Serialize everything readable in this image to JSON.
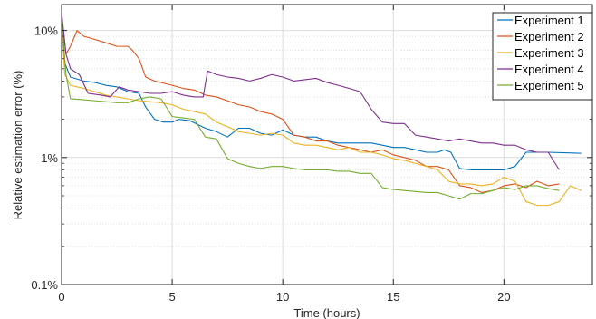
{
  "chart_data": {
    "type": "line",
    "xlabel": "Time (hours)",
    "ylabel": "Relative estimation error (%)",
    "xlim": [
      0,
      24
    ],
    "ylim": [
      0.1,
      16
    ],
    "yscale": "log",
    "grid": true,
    "legend_position": "top-right",
    "x_ticks": [
      0,
      5,
      10,
      15,
      20
    ],
    "x_tick_labels": [
      "0",
      "5",
      "10",
      "15",
      "20"
    ],
    "y_ticks": [
      0.1,
      1,
      10
    ],
    "y_tick_labels": [
      "0.1%",
      "1%",
      "10%"
    ],
    "series": [
      {
        "name": "Experiment 1",
        "color": "#0072BD",
        "x": [
          0,
          0.15,
          0.4,
          1.0,
          1.5,
          2.0,
          2.5,
          3.0,
          3.5,
          3.8,
          4.2,
          4.6,
          5.0,
          5.3,
          5.8,
          6.5,
          7.0,
          7.5,
          8.0,
          8.5,
          9.0,
          9.5,
          10.0,
          10.5,
          11.0,
          11.5,
          12.0,
          12.5,
          13.0,
          13.5,
          14.0,
          14.5,
          15.0,
          15.5,
          16.0,
          16.5,
          17.0,
          17.3,
          17.6,
          18.0,
          18.5,
          19.0,
          19.5,
          20.0,
          20.5,
          21.0,
          21.5,
          22.0,
          23.5
        ],
        "y": [
          14,
          5.5,
          4.3,
          4.0,
          3.9,
          3.7,
          3.6,
          3.3,
          3.2,
          2.5,
          2.0,
          1.9,
          1.9,
          2.0,
          1.95,
          1.7,
          1.6,
          1.45,
          1.7,
          1.7,
          1.55,
          1.5,
          1.65,
          1.5,
          1.45,
          1.45,
          1.35,
          1.3,
          1.3,
          1.3,
          1.3,
          1.25,
          1.2,
          1.2,
          1.15,
          1.1,
          1.1,
          1.15,
          1.1,
          0.82,
          0.8,
          0.8,
          0.8,
          0.8,
          0.85,
          1.1,
          1.1,
          1.1,
          1.08
        ]
      },
      {
        "name": "Experiment 2",
        "color": "#D95319",
        "x": [
          0,
          0.2,
          0.4,
          0.7,
          1.0,
          1.5,
          2.0,
          2.5,
          3.0,
          3.2,
          3.5,
          3.8,
          4.2,
          5.0,
          5.5,
          6.0,
          6.5,
          7.0,
          7.5,
          8.0,
          8.5,
          9.0,
          9.5,
          10.0,
          10.5,
          11.0,
          11.5,
          12.0,
          12.5,
          13.0,
          13.5,
          14.0,
          14.5,
          15.0,
          15.5,
          16.0,
          16.5,
          17.0,
          17.5,
          18.0,
          18.5,
          19.0,
          19.5,
          20.0,
          20.5,
          21.0,
          21.5,
          22.0,
          22.5
        ],
        "y": [
          13,
          6.5,
          7.5,
          10.0,
          9.0,
          8.5,
          8.0,
          7.5,
          7.5,
          7.0,
          6.0,
          4.3,
          4.0,
          3.7,
          3.5,
          3.4,
          3.1,
          3.0,
          2.8,
          2.6,
          2.5,
          2.3,
          2.2,
          2.0,
          1.5,
          1.45,
          1.35,
          1.35,
          1.25,
          1.2,
          1.15,
          1.1,
          1.15,
          1.05,
          1.0,
          0.95,
          0.85,
          0.85,
          0.8,
          0.6,
          0.58,
          0.53,
          0.55,
          0.6,
          0.62,
          0.58,
          0.65,
          0.6,
          0.62
        ]
      },
      {
        "name": "Experiment 3",
        "color": "#EDB120",
        "x": [
          0,
          0.15,
          0.4,
          1.0,
          1.5,
          2.0,
          2.5,
          3.0,
          3.5,
          4.0,
          4.5,
          5.0,
          5.5,
          6.0,
          6.5,
          7.0,
          7.5,
          8.0,
          8.5,
          9.0,
          9.5,
          10.0,
          10.5,
          11.0,
          11.5,
          12.0,
          12.5,
          13.0,
          13.5,
          14.0,
          14.5,
          15.0,
          15.5,
          16.0,
          16.5,
          17.0,
          17.5,
          18.0,
          18.5,
          19.0,
          19.5,
          20.0,
          20.5,
          21.0,
          21.5,
          22.0,
          22.5,
          23.0,
          23.5
        ],
        "y": [
          11,
          4.5,
          3.7,
          3.5,
          3.3,
          3.1,
          3.0,
          2.9,
          2.8,
          2.75,
          2.7,
          2.6,
          2.4,
          2.3,
          2.2,
          1.9,
          1.75,
          1.6,
          1.55,
          1.5,
          1.55,
          1.5,
          1.3,
          1.25,
          1.25,
          1.2,
          1.15,
          1.2,
          1.1,
          1.1,
          1.05,
          0.98,
          0.95,
          0.9,
          0.85,
          0.8,
          0.65,
          0.62,
          0.62,
          0.6,
          0.62,
          0.7,
          0.65,
          0.45,
          0.42,
          0.42,
          0.45,
          0.6,
          0.55
        ]
      },
      {
        "name": "Experiment 4",
        "color": "#7E2F8E",
        "x": [
          0,
          0.2,
          0.4,
          0.8,
          1.2,
          1.8,
          2.2,
          2.6,
          3.0,
          3.5,
          4.0,
          4.5,
          5.0,
          5.5,
          6.0,
          6.4,
          6.6,
          7.0,
          7.5,
          8.0,
          8.5,
          9.0,
          9.5,
          10.0,
          10.5,
          11.0,
          11.5,
          12.0,
          12.5,
          13.0,
          13.5,
          14.0,
          14.5,
          15.0,
          15.5,
          16.0,
          16.5,
          17.0,
          17.5,
          18.0,
          18.5,
          19.0,
          19.5,
          20.0,
          20.5,
          21.0,
          21.5,
          22.0,
          22.5
        ],
        "y": [
          14,
          6.5,
          5.0,
          4.5,
          3.2,
          3.1,
          3.0,
          3.6,
          3.4,
          3.3,
          3.2,
          3.2,
          3.3,
          3.1,
          3.0,
          3.0,
          4.8,
          4.5,
          4.3,
          4.2,
          4.0,
          4.2,
          4.5,
          4.3,
          4.0,
          4.1,
          4.2,
          3.9,
          3.7,
          3.5,
          3.3,
          2.4,
          1.9,
          1.85,
          1.85,
          1.5,
          1.45,
          1.4,
          1.35,
          1.4,
          1.35,
          1.3,
          1.3,
          1.25,
          1.25,
          1.15,
          1.1,
          1.1,
          0.8
        ]
      },
      {
        "name": "Experiment 5",
        "color": "#77AC30",
        "x": [
          0,
          0.2,
          0.4,
          1.0,
          1.5,
          2.0,
          2.5,
          3.0,
          3.5,
          4.0,
          4.5,
          5.0,
          5.5,
          6.0,
          6.5,
          7.0,
          7.5,
          8.0,
          8.5,
          9.0,
          9.5,
          10.0,
          10.5,
          11.0,
          11.5,
          12.0,
          12.5,
          13.0,
          13.5,
          14.0,
          14.5,
          15.0,
          15.5,
          16.0,
          16.5,
          17.0,
          17.5,
          18.0,
          18.5,
          19.0,
          19.5,
          20.0,
          20.5,
          21.0,
          21.5,
          22.0,
          22.5
        ],
        "y": [
          12,
          4.5,
          2.9,
          2.85,
          2.8,
          2.75,
          2.7,
          2.7,
          2.9,
          3.0,
          2.9,
          2.1,
          2.05,
          2.0,
          1.45,
          1.4,
          0.98,
          0.9,
          0.85,
          0.82,
          0.85,
          0.85,
          0.82,
          0.8,
          0.8,
          0.8,
          0.78,
          0.78,
          0.75,
          0.75,
          0.58,
          0.56,
          0.55,
          0.54,
          0.53,
          0.53,
          0.5,
          0.47,
          0.52,
          0.52,
          0.55,
          0.58,
          0.56,
          0.6,
          0.6,
          0.57,
          0.55
        ]
      }
    ]
  }
}
